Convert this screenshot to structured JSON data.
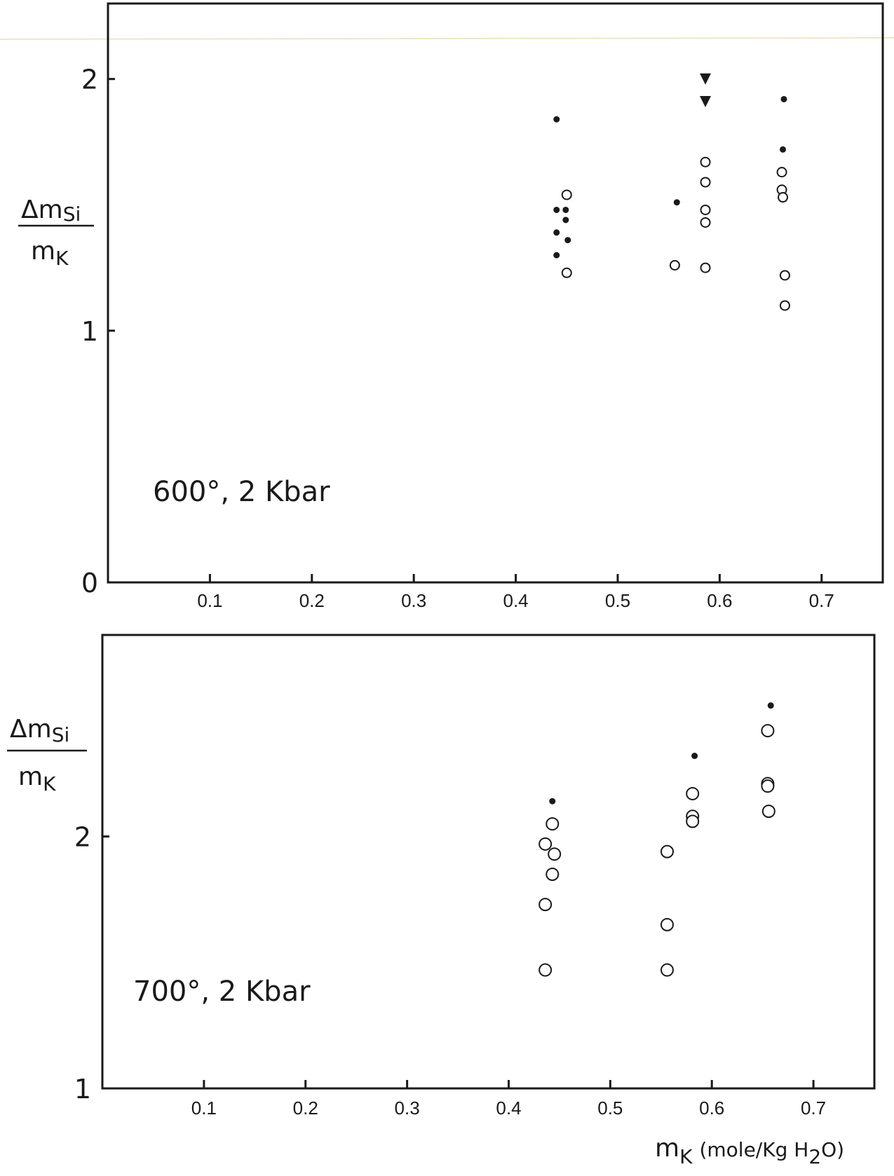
{
  "chart_data": [
    {
      "type": "scatter",
      "annotation": "600°, 2 Kbar",
      "ylabel_num": "Δm",
      "ylabel_num_sub": "Si",
      "ylabel_den": "m",
      "ylabel_den_sub": "K",
      "xlim": [
        0.0,
        0.76
      ],
      "ylim": [
        0,
        2.3
      ],
      "xticks": [
        {
          "value": 0.1,
          "label": "0.1"
        },
        {
          "value": 0.2,
          "label": "0.2"
        },
        {
          "value": 0.3,
          "label": "0.3"
        },
        {
          "value": 0.4,
          "label": "0.4"
        },
        {
          "value": 0.5,
          "label": "0.5"
        },
        {
          "value": 0.6,
          "label": "0.6"
        },
        {
          "value": 0.7,
          "label": "0.7"
        }
      ],
      "yticks": [
        {
          "value": 0,
          "label": "0"
        },
        {
          "value": 1,
          "label": "1"
        },
        {
          "value": 2,
          "label": "2"
        }
      ],
      "series": [
        {
          "marker": "filled-circle",
          "points": [
            [
              0.44,
              1.84
            ],
            [
              0.44,
              1.48
            ],
            [
              0.44,
              1.39
            ],
            [
              0.44,
              1.3
            ],
            [
              0.449,
              1.48
            ],
            [
              0.449,
              1.44
            ],
            [
              0.451,
              1.36
            ],
            [
              0.558,
              1.51
            ],
            [
              0.663,
              1.92
            ],
            [
              0.662,
              1.72
            ]
          ]
        },
        {
          "marker": "open-circle",
          "points": [
            [
              0.45,
              1.54
            ],
            [
              0.45,
              1.23
            ],
            [
              0.556,
              1.26
            ],
            [
              0.586,
              1.67
            ],
            [
              0.586,
              1.59
            ],
            [
              0.586,
              1.48
            ],
            [
              0.586,
              1.43
            ],
            [
              0.586,
              1.25
            ],
            [
              0.661,
              1.63
            ],
            [
              0.661,
              1.56
            ],
            [
              0.662,
              1.53
            ],
            [
              0.664,
              1.22
            ],
            [
              0.664,
              1.1
            ]
          ]
        },
        {
          "marker": "filled-triangle-down",
          "points": [
            [
              0.586,
              2.0
            ],
            [
              0.586,
              1.91
            ]
          ]
        }
      ]
    },
    {
      "type": "scatter",
      "annotation": "700°, 2 Kbar",
      "ylabel_num": "Δm",
      "ylabel_num_sub": "Si",
      "ylabel_den": "m",
      "ylabel_den_sub": "K",
      "xlabel_main": "m",
      "xlabel_sub": "K",
      "xlabel_units": "(mole/Kg H",
      "xlabel_units_sub": "2",
      "xlabel_units_end": "O)",
      "xlim": [
        0.0,
        0.76
      ],
      "ylim": [
        1,
        2.8
      ],
      "xticks": [
        {
          "value": 0.1,
          "label": "0.1"
        },
        {
          "value": 0.2,
          "label": "0.2"
        },
        {
          "value": 0.3,
          "label": "0.3"
        },
        {
          "value": 0.4,
          "label": "0.4"
        },
        {
          "value": 0.5,
          "label": "0.5"
        },
        {
          "value": 0.6,
          "label": "0.6"
        },
        {
          "value": 0.7,
          "label": "0.7"
        }
      ],
      "yticks": [
        {
          "value": 1,
          "label": "1"
        },
        {
          "value": 2,
          "label": "2"
        }
      ],
      "series": [
        {
          "marker": "filled-circle",
          "points": [
            [
              0.443,
              2.14
            ],
            [
              0.583,
              2.32
            ],
            [
              0.658,
              2.52
            ]
          ]
        },
        {
          "marker": "open-circle",
          "points": [
            [
              0.443,
              2.05
            ],
            [
              0.436,
              1.97
            ],
            [
              0.445,
              1.93
            ],
            [
              0.443,
              1.85
            ],
            [
              0.436,
              1.73
            ],
            [
              0.436,
              1.47
            ],
            [
              0.556,
              1.94
            ],
            [
              0.556,
              1.65
            ],
            [
              0.556,
              1.47
            ],
            [
              0.581,
              2.17
            ],
            [
              0.581,
              2.08
            ],
            [
              0.581,
              2.06
            ],
            [
              0.655,
              2.42
            ],
            [
              0.655,
              2.21
            ],
            [
              0.655,
              2.2
            ],
            [
              0.656,
              2.1
            ]
          ]
        }
      ]
    }
  ]
}
